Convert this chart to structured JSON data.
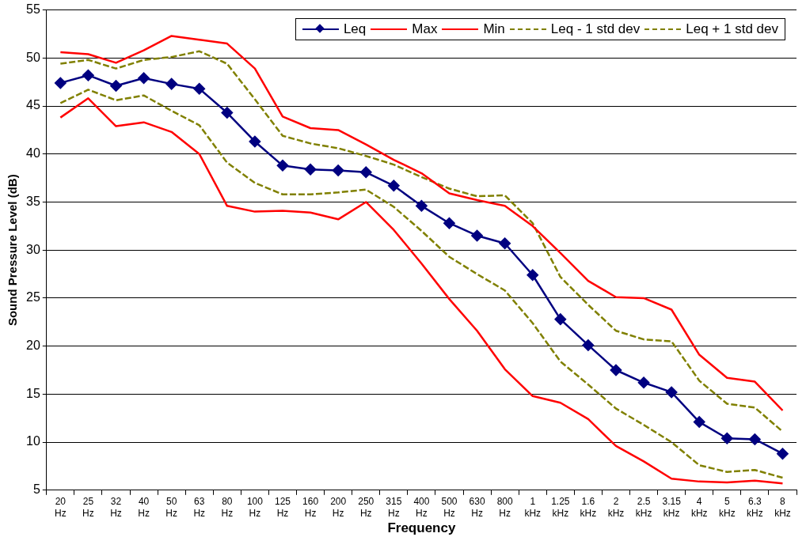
{
  "chart_data": {
    "type": "line",
    "xlabel": "Frequency",
    "ylabel": "Sound Pressure Level (dB)",
    "categories": [
      "20 Hz",
      "25 Hz",
      "32 Hz",
      "40 Hz",
      "50 Hz",
      "63 Hz",
      "80 Hz",
      "100 Hz",
      "125 Hz",
      "160 Hz",
      "200 Hz",
      "250 Hz",
      "315 Hz",
      "400 Hz",
      "500 Hz",
      "630 Hz",
      "800 Hz",
      "1 kHz",
      "1.25 kHz",
      "1.6 kHz",
      "2 kHz",
      "2.5 kHz",
      "3.15 kHz",
      "4 kHz",
      "5 kHz",
      "6.3 kHz",
      "8 kHz"
    ],
    "ylim": [
      5,
      55
    ],
    "yticks": [
      5,
      10,
      15,
      20,
      25,
      30,
      35,
      40,
      45,
      50,
      55
    ],
    "grid": "y",
    "legend": "top right",
    "series": [
      {
        "name": "Leq",
        "color": "#000080",
        "marker": "diamond",
        "line_style": "solid",
        "values": [
          47.4,
          48.2,
          47.1,
          47.9,
          47.3,
          46.8,
          44.3,
          41.3,
          38.8,
          38.4,
          38.3,
          38.1,
          36.7,
          34.6,
          32.8,
          31.5,
          30.7,
          27.4,
          22.8,
          20.1,
          17.5,
          16.2,
          15.2,
          12.1,
          10.4,
          10.3,
          8.8
        ]
      },
      {
        "name": "Max",
        "color": "#ff0000",
        "marker": "none",
        "line_style": "solid",
        "values": [
          50.6,
          50.4,
          49.5,
          50.8,
          52.3,
          51.9,
          51.5,
          48.9,
          43.9,
          42.7,
          42.5,
          41.0,
          39.4,
          38.0,
          35.9,
          35.2,
          34.6,
          32.5,
          29.7,
          26.8,
          25.1,
          25.0,
          23.8,
          19.1,
          16.7,
          16.3,
          13.3
        ]
      },
      {
        "name": "Min",
        "color": "#ff0000",
        "marker": "none",
        "line_style": "solid",
        "values": [
          43.8,
          45.8,
          42.9,
          43.3,
          42.3,
          40.0,
          34.6,
          34.0,
          34.1,
          33.9,
          33.2,
          35.0,
          32.1,
          28.6,
          24.9,
          21.6,
          17.6,
          14.8,
          14.1,
          12.4,
          9.6,
          8.0,
          6.2,
          5.9,
          5.8,
          6.0,
          5.7
        ]
      },
      {
        "name": "Leq - 1 std dev",
        "color": "#808000",
        "marker": "none",
        "line_style": "dashed",
        "values": [
          45.3,
          46.7,
          45.6,
          46.1,
          44.5,
          43.0,
          39.1,
          37.0,
          35.8,
          35.8,
          36.0,
          36.3,
          34.5,
          32.0,
          29.3,
          27.5,
          25.8,
          22.4,
          18.4,
          16.0,
          13.5,
          11.8,
          10.0,
          7.6,
          6.9,
          7.1,
          6.3
        ]
      },
      {
        "name": "Leq + 1 std dev",
        "color": "#808000",
        "marker": "none",
        "line_style": "dashed",
        "values": [
          49.4,
          49.8,
          48.9,
          49.8,
          50.1,
          50.7,
          49.4,
          45.7,
          41.9,
          41.1,
          40.6,
          39.8,
          38.9,
          37.6,
          36.4,
          35.6,
          35.7,
          32.8,
          27.2,
          24.3,
          21.6,
          20.7,
          20.5,
          16.4,
          14.0,
          13.6,
          11.1
        ]
      }
    ]
  }
}
